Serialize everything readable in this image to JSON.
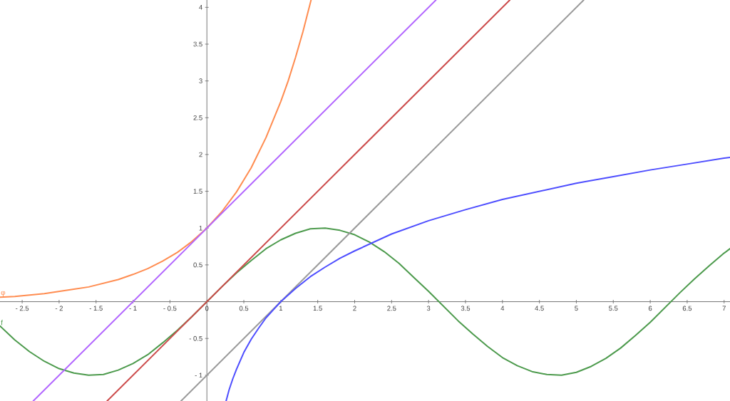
{
  "chart_data": {
    "type": "line",
    "xlim": [
      -2.8,
      7.08
    ],
    "ylim": [
      -1.35,
      4.1
    ],
    "xticks": [
      {
        "value": -2.5,
        "label": "- 2.5"
      },
      {
        "value": -2,
        "label": "- 2"
      },
      {
        "value": -1.5,
        "label": "- 1.5"
      },
      {
        "value": -1,
        "label": "- 1"
      },
      {
        "value": -0.5,
        "label": "- 0.5"
      },
      0,
      0.5,
      1,
      1.5,
      2,
      2.5,
      3,
      3.5,
      4,
      4.5,
      5,
      5.5,
      6,
      6.5,
      7
    ],
    "yticks": [
      {
        "value": -1,
        "label": "- 1"
      },
      {
        "value": -0.5,
        "label": "- 0.5"
      },
      0.5,
      1,
      1.5,
      2,
      2.5,
      3,
      3.5,
      4
    ],
    "series": [
      {
        "name": "f",
        "color": "#4c9a4c",
        "x": [
          -2.8,
          -2.6,
          -2.4,
          -2.2,
          -2.0,
          -1.8,
          -1.6,
          -1.4,
          -1.2,
          -1.0,
          -0.8,
          -0.6,
          -0.4,
          -0.2,
          0,
          0.2,
          0.4,
          0.6,
          0.8,
          1.0,
          1.2,
          1.4,
          1.6,
          1.8,
          2.0,
          2.2,
          2.4,
          2.6,
          2.8,
          3.0,
          3.2,
          3.4,
          3.6,
          3.8,
          4.0,
          4.2,
          4.4,
          4.6,
          4.8,
          5.0,
          5.2,
          5.4,
          5.6,
          5.8,
          6.0,
          6.2,
          6.4,
          6.6,
          6.8,
          7.0,
          7.08
        ],
        "values": [
          -0.33,
          -0.52,
          -0.68,
          -0.81,
          -0.91,
          -0.97,
          -1.0,
          -0.99,
          -0.93,
          -0.84,
          -0.72,
          -0.56,
          -0.39,
          -0.2,
          0,
          0.2,
          0.39,
          0.56,
          0.72,
          0.84,
          0.93,
          0.99,
          1.0,
          0.97,
          0.91,
          0.81,
          0.68,
          0.52,
          0.33,
          0.14,
          -0.06,
          -0.26,
          -0.44,
          -0.61,
          -0.76,
          -0.87,
          -0.95,
          -0.99,
          -1.0,
          -0.96,
          -0.88,
          -0.77,
          -0.63,
          -0.46,
          -0.28,
          -0.08,
          0.12,
          0.31,
          0.49,
          0.66,
          0.72
        ]
      },
      {
        "name": "φ",
        "color": "#ff8c50",
        "x": [
          -2.8,
          -2.6,
          -2.4,
          -2.2,
          -2.0,
          -1.8,
          -1.6,
          -1.4,
          -1.2,
          -1.0,
          -0.8,
          -0.6,
          -0.4,
          -0.2,
          0,
          0.2,
          0.4,
          0.6,
          0.8,
          1.0,
          1.1,
          1.2,
          1.3,
          1.41
        ],
        "values": [
          0.06,
          0.07,
          0.09,
          0.11,
          0.14,
          0.17,
          0.2,
          0.25,
          0.3,
          0.37,
          0.45,
          0.55,
          0.67,
          0.82,
          1,
          1.22,
          1.49,
          1.82,
          2.23,
          2.72,
          3.0,
          3.32,
          3.67,
          4.1
        ]
      },
      {
        "color": "#9a9a9a",
        "x": [
          -0.35,
          5.1
        ],
        "values": [
          -1.35,
          4.1
        ]
      },
      {
        "color": "#4d4dff",
        "x": [
          0.26,
          0.3,
          0.35,
          0.4,
          0.5,
          0.6,
          0.7,
          0.8,
          0.9,
          1.0,
          1.2,
          1.4,
          1.6,
          1.8,
          2.0,
          2.5,
          3.0,
          3.5,
          4.0,
          4.5,
          5.0,
          5.5,
          6.0,
          6.5,
          7.0,
          7.08
        ],
        "values": [
          -1.35,
          -1.2,
          -1.05,
          -0.92,
          -0.69,
          -0.51,
          -0.36,
          -0.22,
          -0.11,
          0,
          0.18,
          0.34,
          0.47,
          0.59,
          0.69,
          0.92,
          1.1,
          1.25,
          1.39,
          1.5,
          1.61,
          1.7,
          1.79,
          1.87,
          1.95,
          1.96
        ]
      },
      {
        "color": "#cc4b4b",
        "x": [
          -1.35,
          4.1
        ],
        "values": [
          -1.35,
          4.1
        ]
      },
      {
        "color": "#b266ff",
        "x": [
          -2.35,
          3.1
        ],
        "values": [
          -1.35,
          4.1
        ]
      }
    ]
  }
}
